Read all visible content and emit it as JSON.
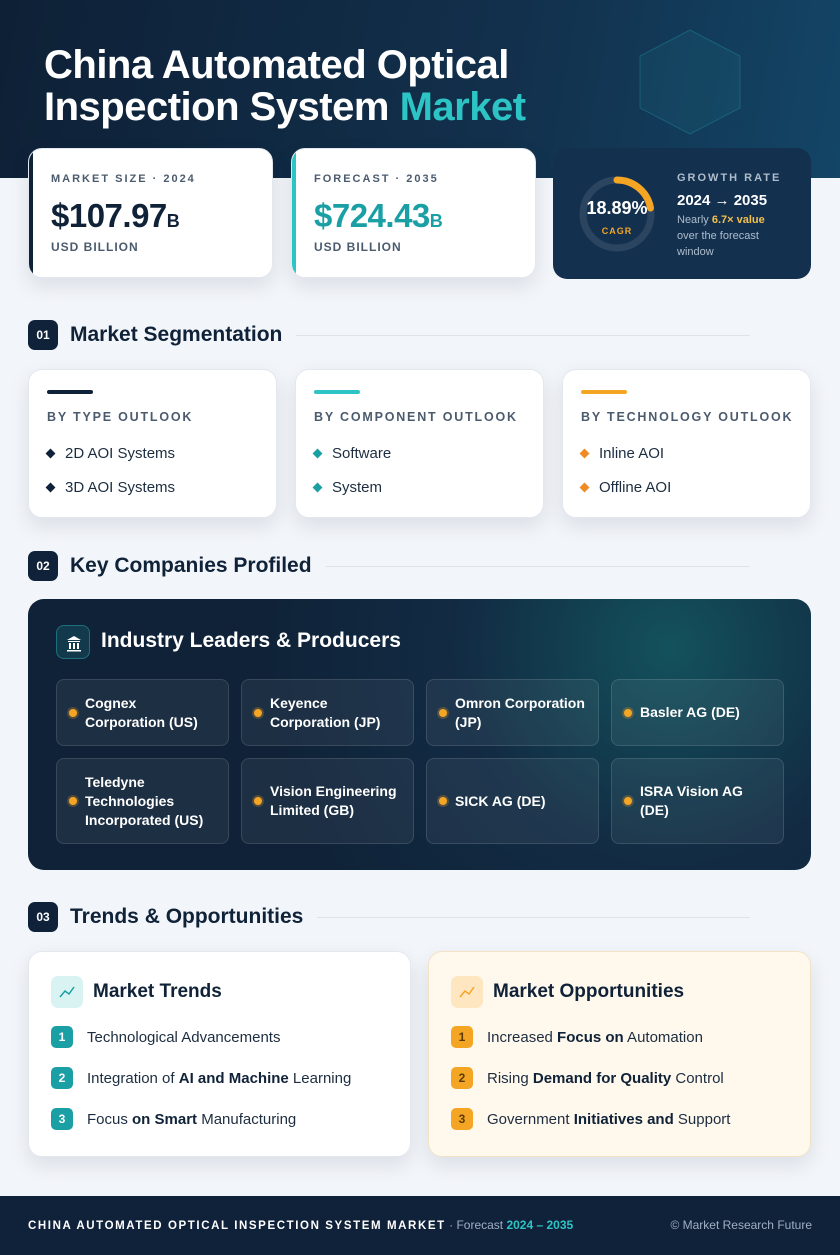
{
  "header": {
    "title_line1": "China Automated Optical",
    "title_line2": "Inspection System ",
    "title_highlight": "Market"
  },
  "stats": [
    {
      "label": "MARKET SIZE · 2024",
      "value": "$107.97",
      "unit": "B",
      "caption": "USD BILLION"
    },
    {
      "label": "FORECAST · 2035",
      "value": "$724.43",
      "unit": "B",
      "caption": "USD BILLION"
    }
  ],
  "growth": {
    "label": "GROWTH RATE",
    "value": "18.89%",
    "sub": "CAGR",
    "period": "2024 → 2035",
    "note_prefix": "Nearly ",
    "note_highlight": "6.7× value",
    "note_rest": " over the forecast window"
  },
  "sections": [
    {
      "number": "01",
      "title": "Market Segmentation"
    },
    {
      "number": "02",
      "title": "Key Companies Profiled"
    },
    {
      "number": "03",
      "title": "Trends & Opportunities"
    }
  ],
  "segmentation": [
    {
      "title": "BY TYPE OUTLOOK",
      "items": [
        "2D AOI Systems",
        "3D AOI Systems"
      ]
    },
    {
      "title": "BY COMPONENT OUTLOOK",
      "items": [
        "Software",
        "System"
      ]
    },
    {
      "title": "BY TECHNOLOGY OUTLOOK",
      "items": [
        "Inline AOI",
        "Offline AOI"
      ]
    }
  ],
  "companies": {
    "title": "Industry Leaders & Producers",
    "items": [
      "Cognex Corporation (US)",
      "Keyence Corporation (JP)",
      "Omron Corporation (JP)",
      "Basler AG (DE)",
      "Teledyne Technologies Incorporated (US)",
      "Vision Engineering Limited (GB)",
      "SICK AG (DE)",
      "ISRA Vision AG (DE)"
    ]
  },
  "trends": {
    "title": "Market Trends",
    "items": [
      {
        "number": "1",
        "parts": [
          "Technological Advancements"
        ]
      },
      {
        "number": "2",
        "parts": [
          "Integration of ",
          "AI and Machine",
          " Learning"
        ]
      },
      {
        "number": "3",
        "parts": [
          "Focus ",
          "on Smart",
          " Manufacturing"
        ]
      }
    ]
  },
  "opportunities": {
    "title": "Market Opportunities",
    "items": [
      {
        "number": "1",
        "parts": [
          "Increased ",
          "Focus on",
          " Automation"
        ]
      },
      {
        "number": "2",
        "parts": [
          "Rising ",
          "Demand for Quality",
          " Control"
        ]
      },
      {
        "number": "3",
        "parts": [
          "Government ",
          "Initiatives and",
          " Support"
        ]
      }
    ]
  },
  "footer": {
    "title": "CHINA AUTOMATED OPTICAL INSPECTION SYSTEM MARKET",
    "separator": " · ",
    "forecast": "Forecast ",
    "period": "2024 – 2035",
    "credit": "© Market Research Future"
  }
}
